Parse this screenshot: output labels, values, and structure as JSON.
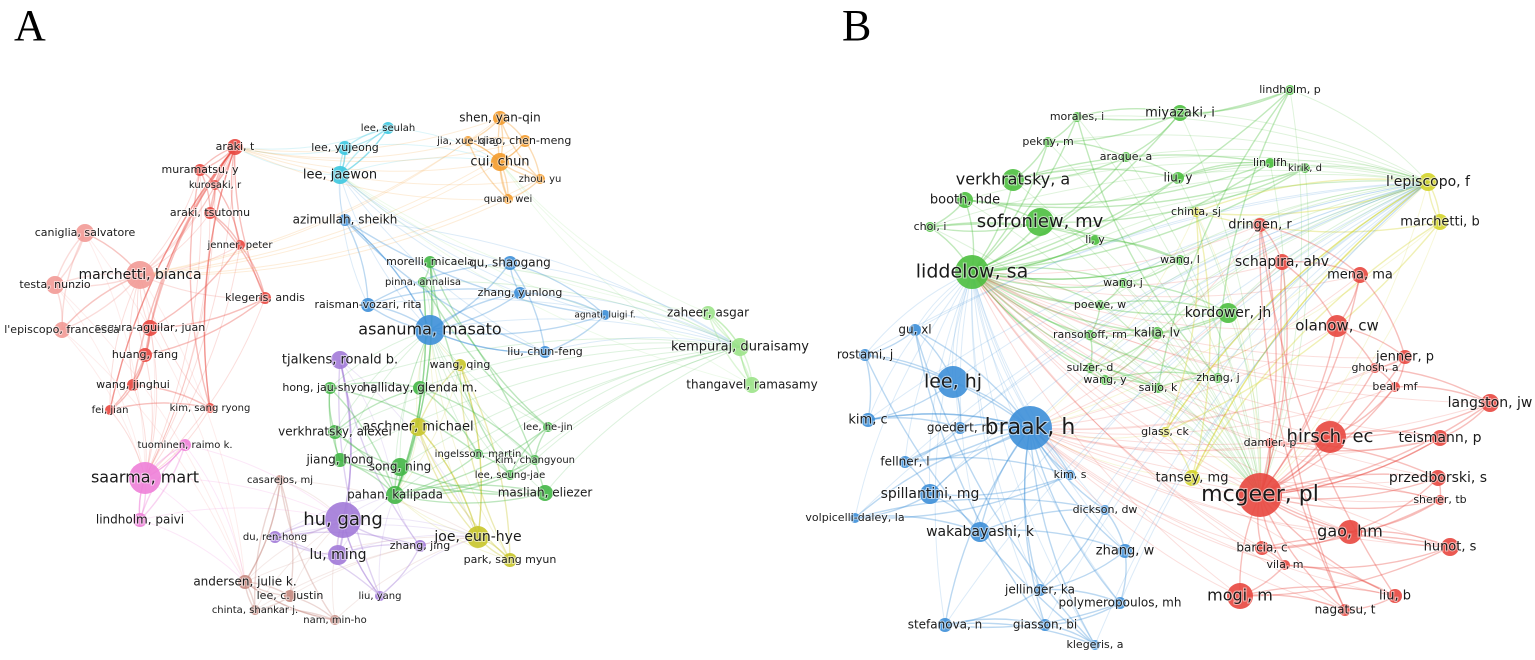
{
  "panels": [
    {
      "letter": "A",
      "clusters": [
        {
          "color": "#e8473f",
          "nodes": [
            "araki, t",
            "muramatsu, y",
            "kurosaki, r",
            "araki, tsutomu",
            "jenner, peter",
            "klegeris, andis",
            "segura-aguilar, juan",
            "huang, fang",
            "wang, jinghui",
            "fei, jian",
            "kim, sang ryong"
          ]
        },
        {
          "color": "#f29a96",
          "nodes": [
            "caniglia, salvatore",
            "marchetti, bianca",
            "testa, nunzio",
            "l'episcopo, francesca"
          ]
        },
        {
          "color": "#ee7fd8",
          "nodes": [
            "tuominen, raimo k.",
            "saarma, mart",
            "lindholm, paivi"
          ]
        },
        {
          "color": "#c58a80",
          "nodes": [
            "casarejos, mj",
            "andersen, julie k.",
            "lee, c. justin",
            "chinta, shankar j.",
            "nam, min-ho"
          ]
        },
        {
          "color": "#a27ad8",
          "nodes": [
            "hu, gang",
            "lu, ming",
            "du, ren-hong",
            "zhang, jing",
            "liu, yang",
            "tjalkens, ronald b."
          ]
        },
        {
          "color": "#c8c52a",
          "nodes": [
            "joe, eun-hye",
            "park, sang myun",
            "aschner, michael",
            "wang, qing"
          ]
        },
        {
          "color": "#42b646",
          "nodes": [
            "pahan, kalipada",
            "masliah, eliezer",
            "song, ning",
            "jiang, hong",
            "verkhratsky, alexei",
            "hong, jau-shyong",
            "halliday, glenda m.",
            "ingelsson, martin",
            "kim, changyoun",
            "lee, seung-jae",
            "lee, he-jin",
            "morelli, micaela",
            "pinna, annalisa"
          ]
        },
        {
          "color": "#3d8fd8",
          "nodes": [
            "asanuma, masato",
            "raisman-vozari, rita",
            "zhang, yunlong",
            "qu, shaogang",
            "agnati, luigi f.",
            "liu, chun-feng",
            "azimullah, sheikh"
          ]
        },
        {
          "color": "#9ce38a",
          "nodes": [
            "zaheer, asgar",
            "kempuraj, duraisamy",
            "thangavel, ramasamy"
          ]
        },
        {
          "color": "#3cc8e0",
          "nodes": [
            "lee, jaewon",
            "lee, yujeong",
            "lee, seulah"
          ]
        },
        {
          "color": "#f39b2c",
          "nodes": [
            "shen, yan-qin",
            "jia, xue-bing",
            "qiao, chen-meng",
            "cui, chun",
            "zhou, yu",
            "quan, wei"
          ]
        }
      ]
    },
    {
      "letter": "B",
      "clusters": [
        {
          "color": "#4cbf3f",
          "nodes": [
            "lindholm, p",
            "morales, i",
            "miyazaki, i",
            "pekny, m",
            "araque, a",
            "verkhratsky, a",
            "liu, y",
            "lin, lfh",
            "kirik, d",
            "booth, hde",
            "sofroniew, mv",
            "choi, i",
            "li, y",
            "wang, l",
            "liddelow, sa",
            "wang, j",
            "poewe, w",
            "kordower, jh",
            "ransohoff, rm",
            "kalia, lv",
            "sulzer, d",
            "wang, y",
            "saijo, k",
            "zhang, j"
          ]
        },
        {
          "color": "#d4d42a",
          "nodes": [
            "l'episcopo, f",
            "marchetti, b",
            "chinta, sj",
            "glass, ck",
            "tansey, mg"
          ]
        },
        {
          "color": "#e8473f",
          "nodes": [
            "dringen, r",
            "schapira, ahv",
            "mena, ma",
            "olanow, cw",
            "jenner, p",
            "ghosh, a",
            "beal, mf",
            "langston, jw",
            "hirsch, ec",
            "teismann, p",
            "damier, p",
            "mcgeer, pl",
            "przedborski, s",
            "sherer, tb",
            "gao, hm",
            "barcia, c",
            "hunot, s",
            "vila, m",
            "mogi, m",
            "liu, b",
            "nagatsu, t"
          ]
        },
        {
          "color": "#3d8fd8",
          "nodes": [
            "gu, xl",
            "rostami, j",
            "lee, hj",
            "kim, c",
            "goedert, m",
            "braak, h",
            "fellner, l",
            "kim, s",
            "spillantini, mg",
            "volpicelli-daley, la",
            "wakabayashi, k",
            "dickson, dw",
            "zhang, w",
            "jellinger, ka",
            "polymeropoulos, mh",
            "stefanova, n",
            "giasson, bi",
            "klegeris, a"
          ]
        }
      ]
    }
  ]
}
